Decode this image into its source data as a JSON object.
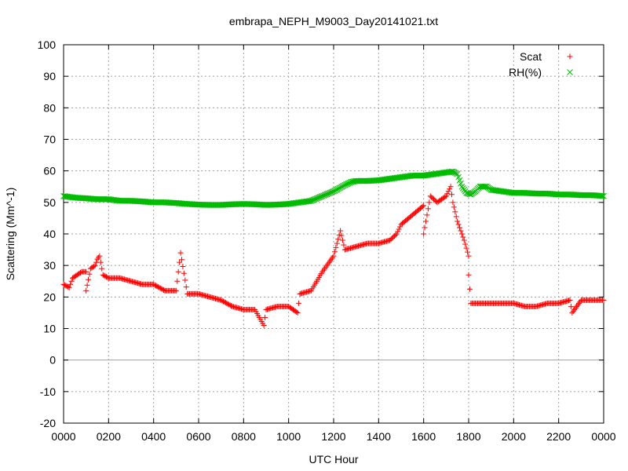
{
  "chart_data": {
    "type": "scatter",
    "title": "embrapa_NEPH_M9003_Day20141021.txt",
    "xlabel": "UTC Hour",
    "ylabel": "Scattering (Mm^-1)",
    "xlim": [
      0,
      24
    ],
    "ylim": [
      -20,
      100
    ],
    "x_ticks": [
      "0000",
      "0200",
      "0400",
      "0600",
      "0800",
      "1000",
      "1200",
      "1400",
      "1600",
      "1800",
      "2000",
      "2200",
      "0000"
    ],
    "y_ticks": [
      -20,
      -10,
      0,
      10,
      20,
      30,
      40,
      50,
      60,
      70,
      80,
      90,
      100
    ],
    "grid": true,
    "legend_position": "top-right",
    "series": [
      {
        "name": "Scat",
        "marker": "plus",
        "color": "#ff0000",
        "points": [
          [
            0.0,
            24
          ],
          [
            0.25,
            23
          ],
          [
            0.4,
            26
          ],
          [
            0.6,
            27
          ],
          [
            0.8,
            28
          ],
          [
            1.0,
            28
          ],
          [
            1.2,
            29
          ],
          [
            1.4,
            30
          ],
          [
            1.5,
            32
          ],
          [
            1.6,
            33
          ],
          [
            1.75,
            27
          ],
          [
            2.0,
            26
          ],
          [
            2.5,
            26
          ],
          [
            3.0,
            25
          ],
          [
            3.5,
            24
          ],
          [
            4.0,
            24
          ],
          [
            4.5,
            22
          ],
          [
            5.0,
            22
          ],
          [
            5.5,
            21
          ],
          [
            6.0,
            21
          ],
          [
            6.5,
            20
          ],
          [
            7.0,
            19
          ],
          [
            7.5,
            17
          ],
          [
            8.0,
            16
          ],
          [
            8.5,
            16
          ],
          [
            9.0,
            16
          ],
          [
            9.5,
            17
          ],
          [
            10.0,
            17
          ],
          [
            10.5,
            21
          ],
          [
            11.0,
            22
          ],
          [
            11.5,
            28
          ],
          [
            12.0,
            33
          ],
          [
            12.5,
            35
          ],
          [
            13.0,
            36
          ],
          [
            13.5,
            37
          ],
          [
            14.0,
            37
          ],
          [
            14.5,
            38
          ],
          [
            15.0,
            43
          ],
          [
            15.5,
            46
          ],
          [
            16.0,
            49
          ],
          [
            16.3,
            52
          ],
          [
            16.6,
            50
          ],
          [
            17.0,
            52
          ],
          [
            17.3,
            50
          ],
          [
            17.5,
            44
          ],
          [
            17.8,
            38
          ],
          [
            18.0,
            33
          ],
          [
            18.1,
            18
          ],
          [
            18.5,
            18
          ],
          [
            19.0,
            18
          ],
          [
            19.5,
            18
          ],
          [
            20.0,
            18
          ],
          [
            20.5,
            17
          ],
          [
            21.0,
            17
          ],
          [
            21.5,
            18
          ],
          [
            22.0,
            18
          ],
          [
            22.5,
            19
          ],
          [
            23.0,
            19
          ],
          [
            23.5,
            19
          ],
          [
            24.0,
            19
          ],
          [
            5.2,
            34
          ],
          [
            8.9,
            11
          ],
          [
            12.3,
            41
          ],
          [
            16.0,
            40
          ],
          [
            14.8,
            40
          ],
          [
            17.2,
            55
          ],
          [
            10.4,
            15
          ],
          [
            22.6,
            15
          ],
          [
            1.0,
            22
          ],
          [
            18.0,
            27
          ]
        ]
      },
      {
        "name": "RH(%)",
        "marker": "cross",
        "color": "#00bb00",
        "points": [
          [
            0.0,
            52
          ],
          [
            0.5,
            51.5
          ],
          [
            1.0,
            51.3
          ],
          [
            1.5,
            51
          ],
          [
            2.0,
            51
          ],
          [
            2.5,
            50.5
          ],
          [
            3.0,
            50.5
          ],
          [
            3.5,
            50.3
          ],
          [
            4.0,
            50
          ],
          [
            4.5,
            50
          ],
          [
            5.0,
            49.8
          ],
          [
            5.5,
            49.5
          ],
          [
            6.0,
            49.3
          ],
          [
            6.5,
            49.2
          ],
          [
            7.0,
            49.2
          ],
          [
            7.5,
            49.4
          ],
          [
            8.0,
            49.5
          ],
          [
            8.5,
            49.4
          ],
          [
            9.0,
            49.2
          ],
          [
            9.5,
            49.3
          ],
          [
            10.0,
            49.5
          ],
          [
            10.5,
            50
          ],
          [
            11.0,
            50.5
          ],
          [
            11.5,
            52
          ],
          [
            12.0,
            53.5
          ],
          [
            12.5,
            55.5
          ],
          [
            12.8,
            56.5
          ],
          [
            13.0,
            56.8
          ],
          [
            13.5,
            56.8
          ],
          [
            14.0,
            57
          ],
          [
            14.5,
            57.5
          ],
          [
            15.0,
            58
          ],
          [
            15.5,
            58.5
          ],
          [
            16.0,
            58.5
          ],
          [
            16.5,
            59
          ],
          [
            17.0,
            59.5
          ],
          [
            17.3,
            59.8
          ],
          [
            17.5,
            59
          ],
          [
            17.7,
            55
          ],
          [
            17.9,
            53
          ],
          [
            18.1,
            52.5
          ],
          [
            18.3,
            53.5
          ],
          [
            18.5,
            55
          ],
          [
            18.8,
            55
          ],
          [
            19.0,
            54
          ],
          [
            19.5,
            53.5
          ],
          [
            20.0,
            53
          ],
          [
            20.5,
            53
          ],
          [
            21.0,
            52.8
          ],
          [
            21.5,
            52.8
          ],
          [
            22.0,
            52.5
          ],
          [
            22.5,
            52.5
          ],
          [
            23.0,
            52.3
          ],
          [
            23.5,
            52.3
          ],
          [
            24.0,
            52
          ]
        ]
      }
    ]
  }
}
